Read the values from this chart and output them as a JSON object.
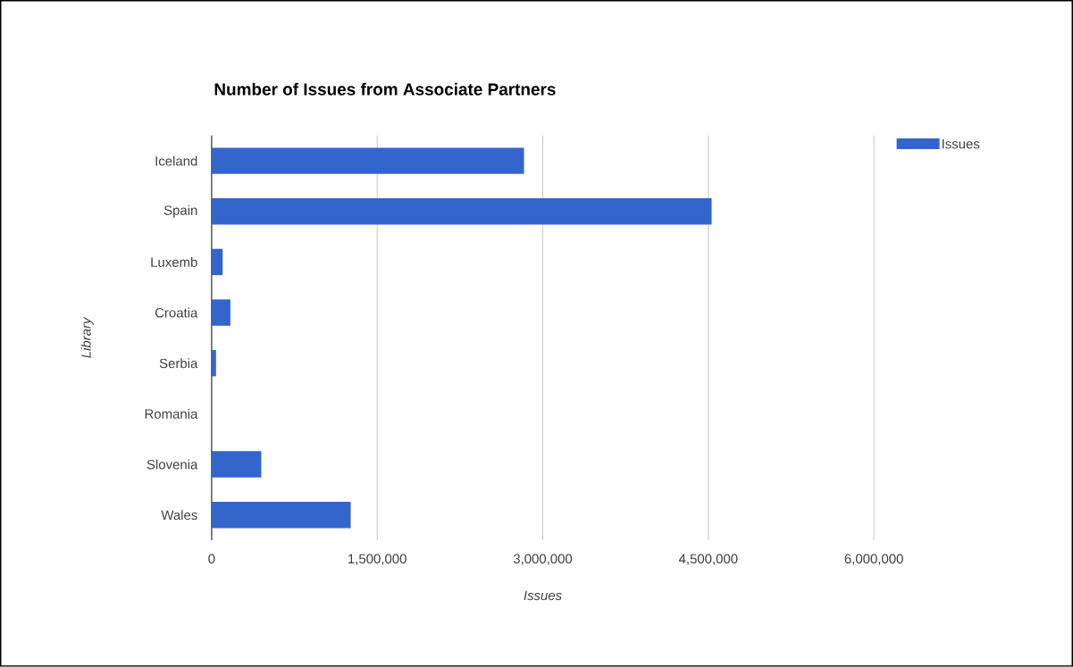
{
  "chart_data": {
    "type": "bar",
    "orientation": "horizontal",
    "title": "Number of Issues from Associate Partners",
    "xlabel": "Issues",
    "ylabel": "Library",
    "categories": [
      "Iceland",
      "Spain",
      "Luxemb",
      "Croatia",
      "Serbia",
      "Romania",
      "Slovenia",
      "Wales"
    ],
    "series": [
      {
        "name": "Issues",
        "color": "#3366cc",
        "values": [
          2830000,
          4530000,
          100000,
          170000,
          40000,
          0,
          450000,
          1260000
        ]
      }
    ],
    "xlim": [
      0,
      6000000
    ],
    "xticks": [
      {
        "value": 0,
        "label": "0"
      },
      {
        "value": 1500000,
        "label": "1,500,000"
      },
      {
        "value": 3000000,
        "label": "3,000,000"
      },
      {
        "value": 4500000,
        "label": "4,500,000"
      },
      {
        "value": 6000000,
        "label": "6,000,000"
      }
    ],
    "grid": "x",
    "legend": "top right"
  }
}
